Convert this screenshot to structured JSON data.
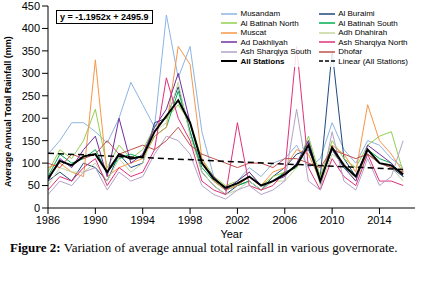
{
  "chart_data": {
    "type": "line",
    "x_label": "Year",
    "y_label": "Average Annual Total Rainfall (mm)",
    "annotation": "y = -1.1952x + 2495.9",
    "caption": "Figure 2: Variation of average annual total rainfall in various governorate.",
    "x": [
      1986,
      1987,
      1988,
      1989,
      1990,
      1991,
      1992,
      1993,
      1994,
      1995,
      1996,
      1997,
      1998,
      1999,
      2000,
      2001,
      2002,
      2003,
      2004,
      2005,
      2006,
      2007,
      2008,
      2009,
      2010,
      2011,
      2012,
      2013,
      2014,
      2015,
      2016
    ],
    "xlim": [
      1986,
      2017
    ],
    "xticks": [
      1986,
      1990,
      1994,
      1998,
      2002,
      2006,
      2010,
      2014
    ],
    "ylim": [
      0,
      450
    ],
    "yticks": [
      0,
      50,
      100,
      150,
      200,
      250,
      300,
      350,
      400,
      450
    ],
    "grid": false,
    "legend": "upper right",
    "series": [
      {
        "name": "Musandam",
        "color": "#8db4e2",
        "values": [
          120,
          150,
          190,
          190,
          170,
          145,
          200,
          280,
          230,
          180,
          430,
          290,
          360,
          170,
          70,
          40,
          60,
          90,
          70,
          100,
          110,
          140,
          90,
          110,
          190,
          130,
          100,
          150,
          140,
          110,
          90
        ]
      },
      {
        "name": "Al Buraimi",
        "color": "#1f497d",
        "values": [
          60,
          80,
          60,
          100,
          90,
          60,
          120,
          90,
          100,
          190,
          200,
          270,
          170,
          80,
          50,
          30,
          50,
          60,
          40,
          70,
          90,
          120,
          130,
          70,
          350,
          110,
          70,
          120,
          100,
          90,
          70
        ]
      },
      {
        "name": "Al Batinah North",
        "color": "#92d050",
        "values": [
          80,
          130,
          110,
          150,
          220,
          90,
          140,
          110,
          130,
          180,
          200,
          230,
          190,
          110,
          70,
          50,
          60,
          80,
          50,
          70,
          80,
          90,
          160,
          70,
          150,
          110,
          90,
          140,
          160,
          170,
          80
        ]
      },
      {
        "name": "Al Batinah South",
        "color": "#00b050",
        "values": [
          70,
          120,
          100,
          110,
          130,
          80,
          110,
          120,
          110,
          160,
          180,
          260,
          170,
          90,
          60,
          40,
          50,
          60,
          40,
          60,
          80,
          90,
          150,
          60,
          130,
          90,
          70,
          130,
          110,
          100,
          70
        ]
      },
      {
        "name": "Muscat",
        "color": "#f79646",
        "values": [
          90,
          100,
          80,
          70,
          330,
          70,
          90,
          100,
          110,
          160,
          180,
          360,
          320,
          110,
          60,
          40,
          50,
          70,
          50,
          80,
          90,
          130,
          120,
          60,
          140,
          120,
          80,
          230,
          150,
          120,
          80
        ]
      },
      {
        "name": "Adh Dhahirah",
        "color": "#c3d69b",
        "values": [
          50,
          90,
          80,
          80,
          100,
          60,
          110,
          80,
          100,
          170,
          190,
          280,
          160,
          80,
          50,
          30,
          40,
          60,
          40,
          60,
          60,
          90,
          140,
          50,
          120,
          100,
          60,
          120,
          100,
          90,
          60
        ]
      },
      {
        "name": "Ad Dakhliyah",
        "color": "#7030a0",
        "values": [
          60,
          110,
          90,
          130,
          160,
          70,
          200,
          100,
          120,
          180,
          220,
          300,
          190,
          100,
          70,
          40,
          60,
          80,
          50,
          60,
          70,
          100,
          150,
          60,
          130,
          90,
          60,
          140,
          120,
          100,
          70
        ]
      },
      {
        "name": "Ash Sharqiya North",
        "color": "#e0307a",
        "values": [
          40,
          70,
          60,
          90,
          110,
          50,
          90,
          70,
          80,
          130,
          290,
          200,
          150,
          60,
          40,
          30,
          190,
          50,
          40,
          50,
          80,
          360,
          90,
          40,
          110,
          70,
          50,
          120,
          60,
          60,
          50
        ]
      },
      {
        "name": "Ash Sharqiya South",
        "color": "#b3a2c7",
        "values": [
          30,
          60,
          50,
          80,
          90,
          40,
          80,
          60,
          70,
          120,
          160,
          150,
          120,
          50,
          30,
          20,
          40,
          50,
          30,
          40,
          60,
          220,
          60,
          40,
          170,
          60,
          40,
          110,
          50,
          70,
          150
        ]
      },
      {
        "name": "Dhofar",
        "color": "#c0504d",
        "values": [
          100,
          90,
          120,
          110,
          120,
          150,
          120,
          130,
          140,
          130,
          150,
          180,
          140,
          120,
          110,
          100,
          90,
          100,
          100,
          90,
          110,
          110,
          100,
          90,
          130,
          120,
          110,
          120,
          100,
          90,
          80
        ]
      },
      {
        "name": "All Stations",
        "color": "#000000",
        "values": [
          65,
          105,
          95,
          115,
          120,
          80,
          120,
          110,
          115,
          170,
          205,
          240,
          190,
          100,
          65,
          45,
          55,
          70,
          50,
          60,
          75,
          95,
          140,
          60,
          135,
          95,
          70,
          130,
          100,
          95,
          75
        ]
      },
      {
        "name": "Linear (All Stations)",
        "color": "#000000",
        "line_style": "dashed",
        "values": [
          122,
          null,
          null,
          null,
          null,
          null,
          null,
          null,
          null,
          null,
          null,
          null,
          null,
          null,
          null,
          null,
          null,
          null,
          null,
          null,
          null,
          null,
          null,
          null,
          null,
          null,
          null,
          null,
          null,
          null,
          86
        ]
      }
    ]
  }
}
